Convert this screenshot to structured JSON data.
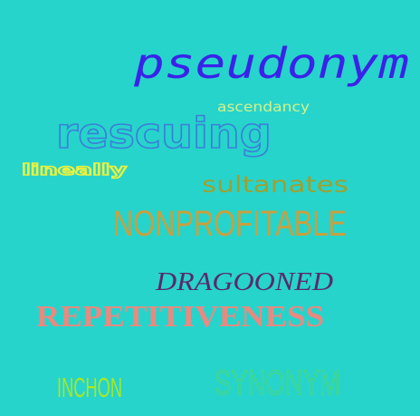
{
  "words": [
    {
      "text": "pseudonym",
      "color": "#3a22e8"
    },
    {
      "text": "ascendancy",
      "color": "#d4f08a"
    },
    {
      "text": "rescuing",
      "color": "#3a7fd8"
    },
    {
      "text": "lineally",
      "color": "#e8f040"
    },
    {
      "text": "sultanates",
      "color": "#a0a030"
    },
    {
      "text": "NONPROFITABLE",
      "color": "#c8a040"
    },
    {
      "text": "DRAGOONED",
      "color": "#5a2a6a"
    },
    {
      "text": "REPETITIVENESS",
      "color": "#e88a80"
    },
    {
      "text": "INCHON",
      "color": "#a8e820"
    },
    {
      "text": "SYNONYM",
      "color": "#40d890"
    }
  ]
}
